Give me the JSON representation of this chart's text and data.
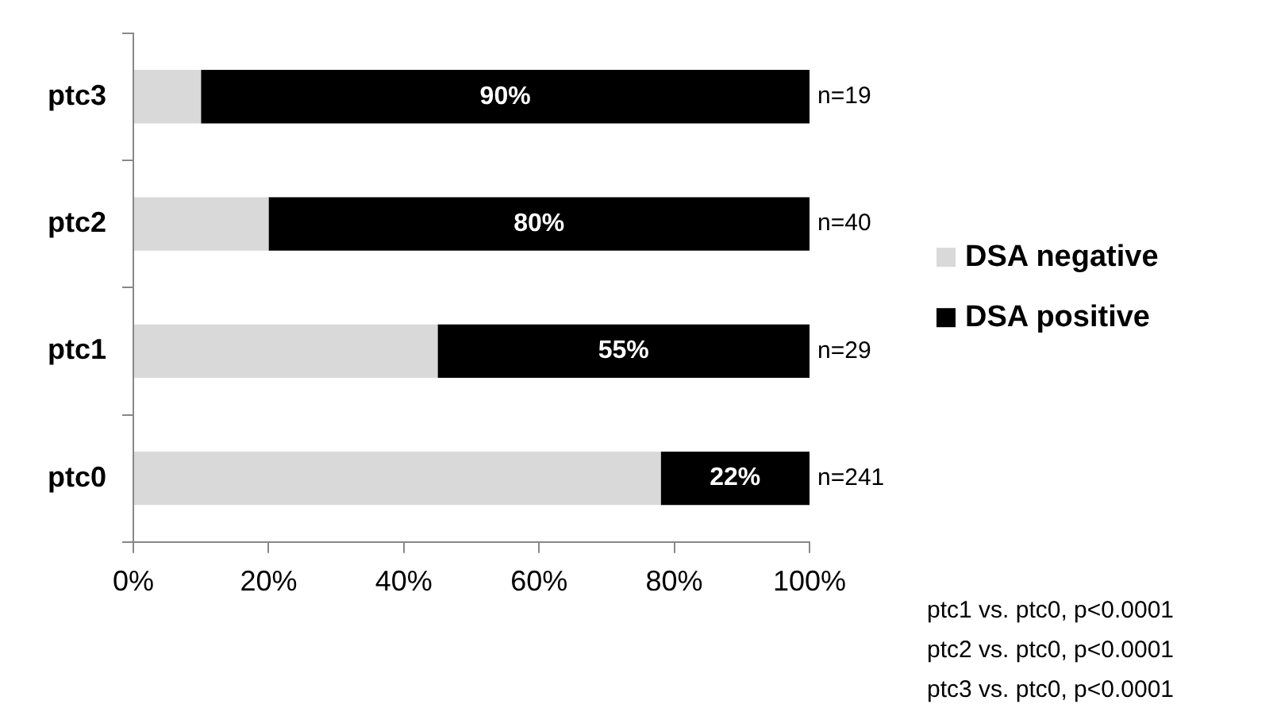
{
  "chart_data": {
    "type": "bar",
    "orientation": "horizontal",
    "stacked": true,
    "categories": [
      "ptc3",
      "ptc2",
      "ptc1",
      "ptc0"
    ],
    "series": [
      {
        "name": "DSA negative",
        "color": "#d9d9d9",
        "values": [
          10,
          20,
          45,
          78
        ]
      },
      {
        "name": "DSA positive",
        "color": "#000000",
        "values": [
          90,
          80,
          55,
          22
        ],
        "value_labels": [
          "90%",
          "80%",
          "55%",
          "22%"
        ]
      }
    ],
    "xlim": [
      0,
      100
    ],
    "xticks": [
      {
        "value": 0,
        "label": "0%"
      },
      {
        "value": 20,
        "label": "20%"
      },
      {
        "value": 40,
        "label": "40%"
      },
      {
        "value": 60,
        "label": "60%"
      },
      {
        "value": 80,
        "label": "80%"
      },
      {
        "value": 100,
        "label": "100%"
      }
    ],
    "grid": false,
    "legend": "right",
    "annotations": [
      "n=19",
      "n=40",
      "n=29",
      "n=241",
      "ptc1 vs. ptc0, p<0.0001",
      "ptc2 vs. ptc0, p<0.0001",
      "ptc3 vs. ptc0, p<0.0001"
    ]
  }
}
